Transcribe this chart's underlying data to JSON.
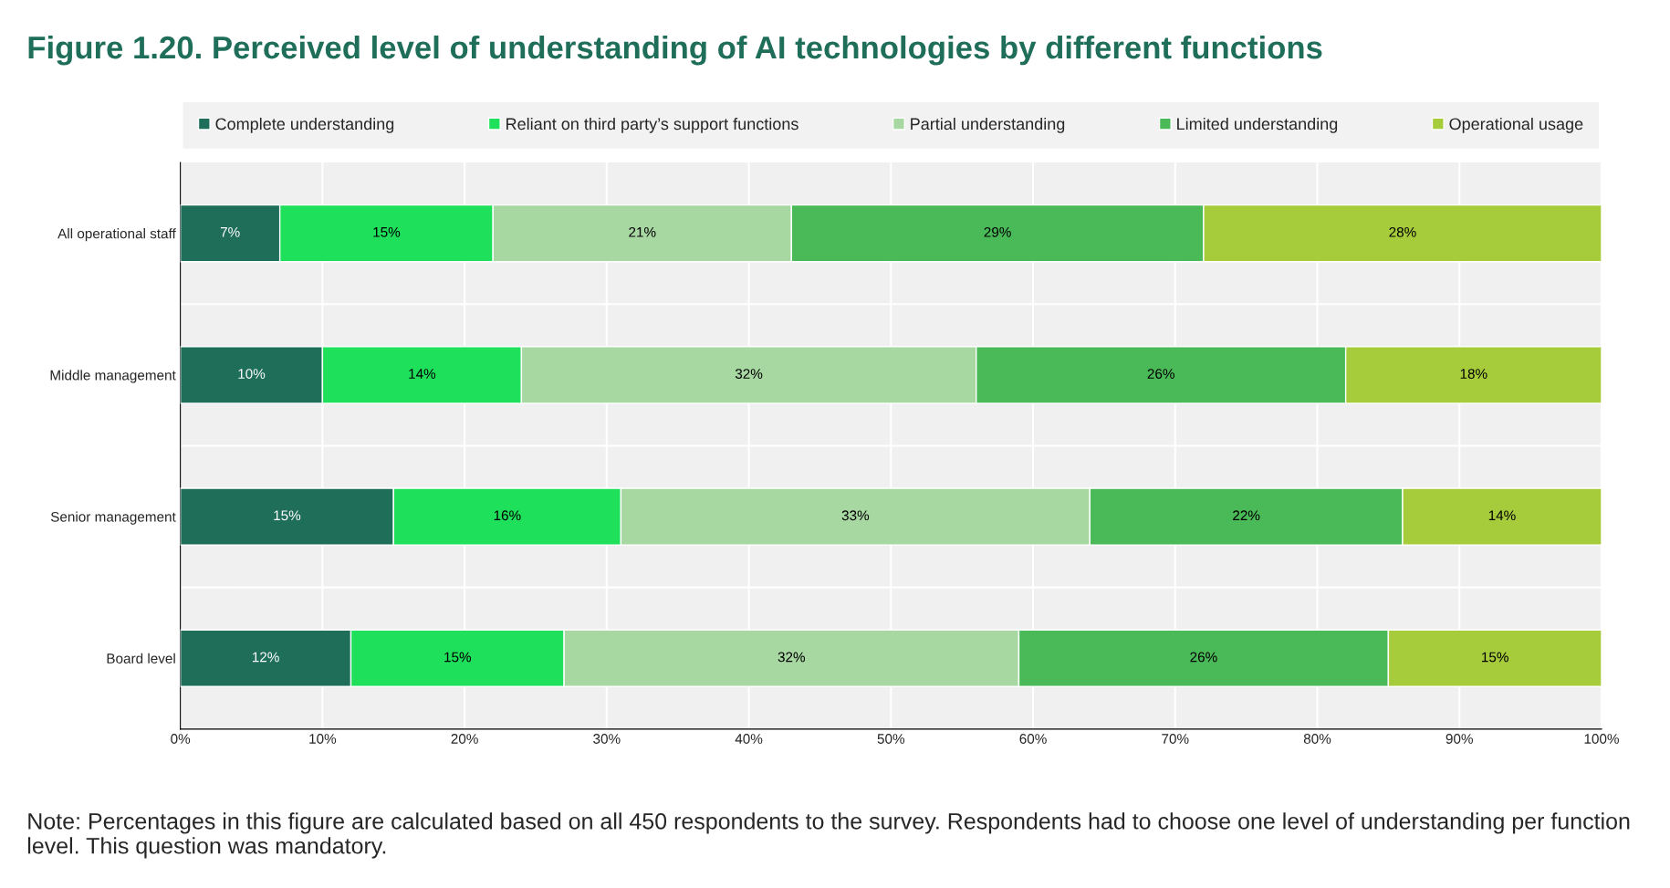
{
  "chart_data": {
    "type": "bar",
    "orientation": "horizontal",
    "stacked": true,
    "title": "Figure 1.20. Perceived level of understanding of AI technologies by different functions",
    "categories": [
      "All operational staff",
      "Middle management",
      "Senior management",
      "Board level"
    ],
    "series": [
      {
        "name": "Complete understanding",
        "color": "#1f6e5a",
        "values": [
          7,
          10,
          15,
          12
        ],
        "value_labels": [
          "7%",
          "10%",
          "15%",
          "12%"
        ]
      },
      {
        "name": "Reliant on third party’s support functions",
        "color": "#1ee05a",
        "values": [
          15,
          14,
          16,
          15
        ],
        "value_labels": [
          "15%",
          "14%",
          "16%",
          "15%"
        ]
      },
      {
        "name": "Partial understanding",
        "color": "#a8d8a2",
        "values": [
          21,
          32,
          33,
          32
        ],
        "value_labels": [
          "21%",
          "32%",
          "33%",
          "32%"
        ]
      },
      {
        "name": "Limited understanding",
        "color": "#4ab957",
        "values": [
          29,
          26,
          22,
          26
        ],
        "value_labels": [
          "29%",
          "26%",
          "22%",
          "26%"
        ]
      },
      {
        "name": "Operational usage",
        "color": "#a6cc3b",
        "values": [
          28,
          18,
          14,
          15
        ],
        "value_labels": [
          "28%",
          "18%",
          "14%",
          "15%"
        ]
      }
    ],
    "xlim": [
      0,
      100
    ],
    "xticks": [
      {
        "value": 0,
        "label": "0%"
      },
      {
        "value": 10,
        "label": "10%"
      },
      {
        "value": 20,
        "label": "20%"
      },
      {
        "value": 30,
        "label": "30%"
      },
      {
        "value": 40,
        "label": "40%"
      },
      {
        "value": 50,
        "label": "50%"
      },
      {
        "value": 60,
        "label": "60%"
      },
      {
        "value": 70,
        "label": "70%"
      },
      {
        "value": 80,
        "label": "80%"
      },
      {
        "value": 90,
        "label": "90%"
      },
      {
        "value": 100,
        "label": "100%"
      }
    ],
    "grid": "x",
    "legend": "top",
    "annotations": [
      "Note: Percentages in this figure are calculated based on all 450 respondents to the survey. Respondents had to choose one level of understanding per function level. This question was mandatory."
    ]
  }
}
